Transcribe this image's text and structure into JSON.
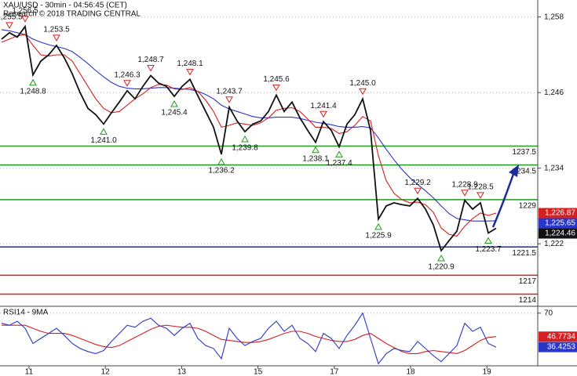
{
  "chart_data": [
    {
      "type": "line",
      "title": "XAU/USD - 30min - 04:56:45 (CET)",
      "subtitle": "Research © 2018 TRADING CENTRAL",
      "ylim": [
        1212.2,
        1260.7
      ],
      "yticks": [
        {
          "value": 1258,
          "label": "1,258"
        },
        {
          "value": 1246,
          "label": "1,246"
        },
        {
          "value": 1234,
          "label": "1,234"
        },
        {
          "value": 1222,
          "label": "1,222"
        }
      ],
      "grid": true,
      "x_labels": [
        "11",
        "12",
        "13",
        "15",
        "17",
        "18",
        "19"
      ],
      "series": [
        {
          "color": "#111111",
          "values": [
            1254.5,
            1255.5,
            1254.8,
            1256.5,
            1248.8,
            1251.0,
            1252.0,
            1253.5,
            1251.5,
            1249.0,
            1246.0,
            1243.5,
            1242.5,
            1241.0,
            1242.8,
            1244.5,
            1246.3,
            1245.0,
            1247.0,
            1248.7,
            1247.5,
            1247.0,
            1245.4,
            1247.0,
            1248.1,
            1245.5,
            1243.0,
            1240.5,
            1236.2,
            1243.7,
            1241.5,
            1239.8,
            1241.0,
            1241.5,
            1243.0,
            1245.6,
            1243.0,
            1244.5,
            1242.0,
            1240.0,
            1238.1,
            1241.4,
            1240.0,
            1237.4,
            1241.0,
            1242.5,
            1245.0,
            1240.0,
            1225.9,
            1228.0,
            1228.5,
            1228.2,
            1228.0,
            1229.2,
            1227.5,
            1225.0,
            1220.9,
            1222.5,
            1224.0,
            1228.9,
            1227.5,
            1228.5,
            1223.7,
            1224.46
          ]
        },
        {
          "color": "#d42020",
          "values": [
            1254,
            1254.5,
            1255,
            1255.2,
            1253.5,
            1252,
            1251.8,
            1252,
            1252,
            1251,
            1249,
            1247,
            1245,
            1243.5,
            1242.8,
            1243,
            1244,
            1245,
            1245.8,
            1246.8,
            1247.3,
            1247.2,
            1246.6,
            1246.5,
            1246.8,
            1246.2,
            1244.8,
            1243,
            1240.5,
            1240.8,
            1241.2,
            1241,
            1240.8,
            1241.2,
            1242,
            1243.2,
            1243.5,
            1243.6,
            1243,
            1241.8,
            1240.5,
            1240.5,
            1240.3,
            1239.5,
            1239.8,
            1240.8,
            1242.2,
            1241.5,
            1236,
            1232,
            1230,
            1229,
            1228.5,
            1228.6,
            1228.2,
            1227,
            1224.5,
            1223.5,
            1223.2,
            1224.8,
            1226,
            1226.9,
            1226.5,
            1226.87
          ]
        },
        {
          "color": "#2a36c8",
          "values": [
            1256,
            1255.8,
            1255.5,
            1255.2,
            1254.5,
            1254,
            1253.6,
            1253.3,
            1253,
            1252.5,
            1251.6,
            1250.6,
            1249.5,
            1248.5,
            1247.6,
            1247,
            1246.7,
            1246.6,
            1246.6,
            1246.7,
            1246.8,
            1246.8,
            1246.7,
            1246.6,
            1246.5,
            1246.2,
            1245.7,
            1245,
            1244,
            1243.4,
            1243,
            1242.6,
            1242.2,
            1242,
            1242,
            1242.1,
            1242.1,
            1242.1,
            1241.9,
            1241.6,
            1241.3,
            1241.1,
            1240.9,
            1240.6,
            1240.5,
            1240.5,
            1240.6,
            1240.4,
            1238.8,
            1237,
            1235.3,
            1233.8,
            1232.5,
            1231.4,
            1230.4,
            1229.3,
            1228,
            1226.8,
            1226,
            1225.8,
            1225.6,
            1225.6,
            1225.6,
            1225.65
          ]
        }
      ],
      "annotations": [
        {
          "value": 1255.5,
          "label": "1,255.5",
          "kind": "high"
        },
        {
          "value": 1256.5,
          "label": "1,256.5",
          "kind": "high"
        },
        {
          "value": 1248.8,
          "label": "1,248.8",
          "kind": "low"
        },
        {
          "value": 1253.5,
          "label": "1,253.5",
          "kind": "high"
        },
        {
          "value": 1241.0,
          "label": "1,241.0",
          "kind": "low"
        },
        {
          "value": 1246.3,
          "label": "1,246.3",
          "kind": "high"
        },
        {
          "value": 1248.7,
          "label": "1,248.7",
          "kind": "high"
        },
        {
          "value": 1245.4,
          "label": "1,245.4",
          "kind": "low"
        },
        {
          "value": 1248.1,
          "label": "1,248.1",
          "kind": "high"
        },
        {
          "value": 1236.2,
          "label": "1,236.2",
          "kind": "low"
        },
        {
          "value": 1243.7,
          "label": "1,243.7",
          "kind": "high"
        },
        {
          "value": 1239.8,
          "label": "1,239.8",
          "kind": "low"
        },
        {
          "value": 1245.6,
          "label": "1,245.6",
          "kind": "high"
        },
        {
          "value": 1238.1,
          "label": "1,238.1",
          "kind": "low"
        },
        {
          "value": 1241.4,
          "label": "1,241.4",
          "kind": "high"
        },
        {
          "value": 1237.4,
          "label": "1,237.4",
          "kind": "low"
        },
        {
          "value": 1245.0,
          "label": "1,245.0",
          "kind": "high"
        },
        {
          "value": 1225.9,
          "label": "1,225.9",
          "kind": "low"
        },
        {
          "value": 1229.2,
          "label": "1,229.2",
          "kind": "high"
        },
        {
          "value": 1220.9,
          "label": "1,220.9",
          "kind": "low"
        },
        {
          "value": 1228.9,
          "label": "1,228.9",
          "kind": "high"
        },
        {
          "value": 1228.5,
          "label": "1,228.5",
          "kind": "high"
        },
        {
          "value": 1223.7,
          "label": "1,223.7",
          "kind": "low"
        }
      ],
      "levels": [
        {
          "value": 1237.5,
          "label": "1237.5",
          "color": "#1f9a1f"
        },
        {
          "value": 1234.5,
          "label": "1234.5",
          "color": "#1f9a1f"
        },
        {
          "value": 1229,
          "label": "1229",
          "color": "#1f9a1f"
        },
        {
          "value": 1221.5,
          "label": "1221.5",
          "color": "#1c2a9c"
        },
        {
          "value": 1217,
          "label": "1217",
          "color": "#d42020"
        },
        {
          "value": 1214,
          "label": "1214",
          "color": "#d42020"
        }
      ],
      "price_boxes": [
        {
          "value": 1226.87,
          "label": "1,226.87",
          "color": "#d42020"
        },
        {
          "value": 1225.65,
          "label": "1,225.65",
          "color": "#2a36c8"
        },
        {
          "value": 1224.46,
          "label": "1,224.46",
          "color": "#111111"
        }
      ]
    },
    {
      "type": "line",
      "title": "RSI14 - 9MA",
      "ylim": [
        18.7,
        76
      ],
      "yticks": [
        70
      ],
      "grid": true,
      "series": [
        {
          "color": "#2a36c8",
          "values": [
            60,
            58,
            62,
            55,
            40,
            45,
            50,
            55,
            48,
            40,
            35,
            32,
            30,
            33,
            42,
            50,
            58,
            56,
            62,
            65,
            58,
            55,
            48,
            55,
            60,
            45,
            38,
            35,
            25,
            55,
            45,
            38,
            42,
            45,
            55,
            62,
            52,
            58,
            45,
            40,
            32,
            50,
            45,
            35,
            48,
            58,
            70,
            45,
            20,
            30,
            35,
            33,
            32,
            42,
            35,
            28,
            22,
            30,
            38,
            60,
            52,
            56,
            40,
            36.4253
          ]
        },
        {
          "color": "#d42020",
          "values": [
            58,
            58,
            58,
            58,
            55,
            52,
            50,
            50,
            50,
            48,
            45,
            42,
            39,
            37,
            36,
            38,
            42,
            46,
            50,
            54,
            57,
            58,
            57,
            56,
            56,
            55,
            52,
            48,
            44,
            43,
            42,
            41,
            41,
            42,
            44,
            47,
            50,
            52,
            52,
            50,
            47,
            45,
            43,
            42,
            42,
            44,
            48,
            50,
            45,
            40,
            36,
            32,
            30,
            30,
            32,
            33,
            32,
            31,
            30,
            33,
            38,
            43,
            46,
            46.7734
          ]
        }
      ],
      "price_boxes": [
        {
          "value": 46.7734,
          "label": "46.7734",
          "color": "#d42020"
        },
        {
          "value": 36.4253,
          "label": "36.4253",
          "color": "#2a36c8"
        }
      ]
    }
  ]
}
